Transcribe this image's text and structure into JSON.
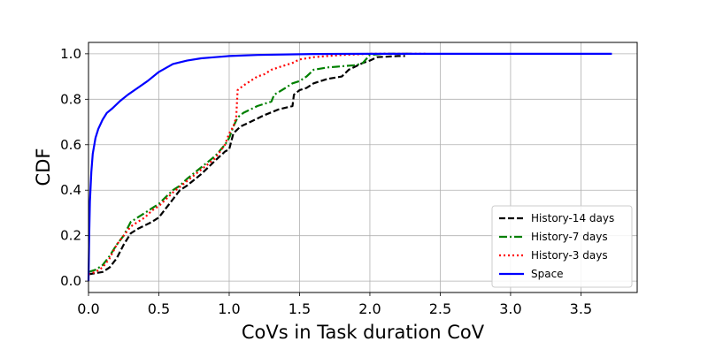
{
  "chart_data": {
    "type": "line",
    "title": "",
    "xlabel": "CoVs in Task duration CoV",
    "ylabel": "CDF",
    "xlim": [
      0.0,
      3.9
    ],
    "ylim": [
      -0.05,
      1.05
    ],
    "xticks": [
      0.0,
      0.5,
      1.0,
      1.5,
      2.0,
      2.5,
      3.0,
      3.5
    ],
    "xtick_labels": [
      "0.0",
      "0.5",
      "1.0",
      "1.5",
      "2.0",
      "2.5",
      "3.0",
      "3.5"
    ],
    "yticks": [
      0.0,
      0.2,
      0.4,
      0.6,
      0.8,
      1.0
    ],
    "ytick_labels": [
      "0.0",
      "0.2",
      "0.4",
      "0.6",
      "0.8",
      "1.0"
    ],
    "grid": true,
    "legend_position": "lower right",
    "series": [
      {
        "name": "History-14 days",
        "color": "#000000",
        "style": "dashed",
        "x": [
          0.0,
          0.05,
          0.1,
          0.15,
          0.2,
          0.25,
          0.3,
          0.35,
          0.4,
          0.45,
          0.5,
          0.55,
          0.6,
          0.65,
          0.7,
          0.8,
          0.9,
          0.97,
          1.0,
          1.03,
          1.08,
          1.15,
          1.25,
          1.35,
          1.45,
          1.46,
          1.5,
          1.55,
          1.6,
          1.7,
          1.8,
          1.85,
          1.95,
          2.0,
          2.05,
          2.2,
          2.25
        ],
        "y": [
          0.03,
          0.035,
          0.04,
          0.06,
          0.1,
          0.16,
          0.21,
          0.23,
          0.245,
          0.26,
          0.28,
          0.32,
          0.36,
          0.4,
          0.42,
          0.47,
          0.53,
          0.57,
          0.58,
          0.65,
          0.68,
          0.7,
          0.73,
          0.755,
          0.77,
          0.82,
          0.84,
          0.85,
          0.87,
          0.89,
          0.9,
          0.93,
          0.96,
          0.97,
          0.985,
          0.99,
          0.99
        ]
      },
      {
        "name": "History-7 days",
        "color": "#008000",
        "style": "dashdot",
        "x": [
          0.0,
          0.05,
          0.1,
          0.15,
          0.2,
          0.25,
          0.3,
          0.35,
          0.4,
          0.45,
          0.5,
          0.55,
          0.6,
          0.65,
          0.7,
          0.8,
          0.9,
          0.97,
          1.0,
          1.03,
          1.06,
          1.1,
          1.2,
          1.3,
          1.32,
          1.4,
          1.45,
          1.5,
          1.55,
          1.6,
          1.7,
          1.8,
          1.9,
          1.95,
          2.0,
          2.1,
          2.3
        ],
        "y": [
          0.04,
          0.05,
          0.07,
          0.11,
          0.16,
          0.2,
          0.26,
          0.28,
          0.3,
          0.32,
          0.34,
          0.37,
          0.4,
          0.42,
          0.45,
          0.5,
          0.55,
          0.6,
          0.63,
          0.68,
          0.72,
          0.74,
          0.77,
          0.79,
          0.82,
          0.85,
          0.87,
          0.88,
          0.9,
          0.93,
          0.94,
          0.945,
          0.95,
          0.96,
          0.995,
          1.0,
          1.0
        ]
      },
      {
        "name": "History-3 days",
        "color": "#ff0000",
        "style": "dotted",
        "x": [
          0.0,
          0.05,
          0.1,
          0.15,
          0.2,
          0.25,
          0.3,
          0.35,
          0.4,
          0.45,
          0.5,
          0.55,
          0.6,
          0.7,
          0.8,
          0.9,
          0.97,
          1.0,
          1.03,
          1.05,
          1.06,
          1.1,
          1.15,
          1.2,
          1.25,
          1.3,
          1.35,
          1.4,
          1.45,
          1.5,
          1.6,
          1.7,
          1.8,
          2.0,
          2.2,
          2.4
        ],
        "y": [
          0.03,
          0.04,
          0.06,
          0.1,
          0.16,
          0.2,
          0.24,
          0.26,
          0.28,
          0.31,
          0.33,
          0.36,
          0.39,
          0.44,
          0.49,
          0.54,
          0.6,
          0.65,
          0.68,
          0.72,
          0.84,
          0.86,
          0.88,
          0.9,
          0.91,
          0.93,
          0.94,
          0.95,
          0.96,
          0.975,
          0.985,
          0.99,
          0.995,
          1.0,
          1.0,
          1.0
        ]
      },
      {
        "name": "Space",
        "color": "#0000ff",
        "style": "solid",
        "x": [
          0.0,
          0.005,
          0.01,
          0.02,
          0.03,
          0.05,
          0.07,
          0.1,
          0.13,
          0.17,
          0.22,
          0.28,
          0.35,
          0.42,
          0.5,
          0.6,
          0.7,
          0.8,
          0.9,
          1.0,
          1.2,
          1.4,
          1.6,
          2.0,
          2.5,
          3.0,
          3.5,
          3.72
        ],
        "y": [
          0.0,
          0.2,
          0.35,
          0.48,
          0.56,
          0.63,
          0.67,
          0.71,
          0.74,
          0.76,
          0.79,
          0.82,
          0.85,
          0.88,
          0.92,
          0.955,
          0.97,
          0.98,
          0.985,
          0.99,
          0.995,
          0.997,
          0.999,
          1.0,
          1.0,
          1.0,
          1.0,
          1.0
        ]
      }
    ]
  }
}
